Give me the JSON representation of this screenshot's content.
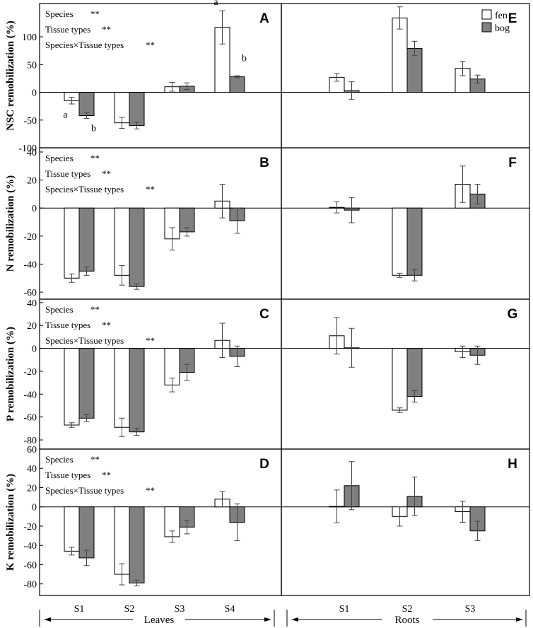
{
  "legend": {
    "fen_label": "fen",
    "bog_label": "bog",
    "fen_color": "#ffffff",
    "bog_color": "#808080"
  },
  "x_axis": {
    "leaves_label": "Leaves",
    "roots_label": "Roots"
  },
  "chart_data": [
    {
      "type": "bar",
      "panel": "A",
      "ylabel": "NSC remobilization (%)",
      "ylim": [
        -100,
        160
      ],
      "yticks": [
        -100,
        -50,
        0,
        50,
        100
      ],
      "categories": [
        "S1",
        "S2",
        "S3",
        "S4"
      ],
      "series": [
        {
          "name": "fen",
          "values": [
            -15,
            -55,
            10,
            117
          ],
          "errors": [
            6,
            10,
            8,
            30
          ]
        },
        {
          "name": "bog",
          "values": [
            -42,
            -60,
            11,
            28
          ],
          "errors": [
            5,
            6,
            6,
            2
          ]
        }
      ],
      "significance": [
        {
          "label": "Species",
          "mark": "**"
        },
        {
          "label": "Tissue types",
          "mark": "**"
        },
        {
          "label": "Species×Tissue types",
          "mark": "**"
        }
      ],
      "bar_letters": [
        {
          "category": "S1",
          "series": "fen",
          "letter": "a"
        },
        {
          "category": "S1",
          "series": "bog",
          "letter": "b"
        },
        {
          "category": "S4",
          "series": "fen",
          "letter": "a"
        },
        {
          "category": "S4",
          "series": "bog",
          "letter": "b"
        }
      ]
    },
    {
      "type": "bar",
      "panel": "E",
      "ylim": [
        -100,
        160
      ],
      "categories": [
        "S1",
        "S2",
        "S3"
      ],
      "series": [
        {
          "name": "fen",
          "values": [
            27,
            134,
            43
          ],
          "errors": [
            7,
            20,
            13
          ]
        },
        {
          "name": "bog",
          "values": [
            3,
            79,
            24
          ],
          "errors": [
            16,
            13,
            7
          ]
        }
      ]
    },
    {
      "type": "bar",
      "panel": "B",
      "ylabel": "N remobilization (%)",
      "ylim": [
        -65,
        43
      ],
      "yticks": [
        -60,
        -40,
        -20,
        0,
        20,
        40
      ],
      "categories": [
        "S1",
        "S2",
        "S3",
        "S4"
      ],
      "series": [
        {
          "name": "fen",
          "values": [
            -50,
            -48,
            -22,
            5
          ],
          "errors": [
            3,
            7,
            8,
            12
          ]
        },
        {
          "name": "bog",
          "values": [
            -45,
            -56,
            -17,
            -9
          ],
          "errors": [
            3,
            2,
            3,
            9
          ]
        }
      ],
      "significance": [
        {
          "label": "Species",
          "mark": "**"
        },
        {
          "label": "Tissue types",
          "mark": "**"
        },
        {
          "label": "Species×Tissue types",
          "mark": "**"
        }
      ]
    },
    {
      "type": "bar",
      "panel": "F",
      "ylim": [
        -65,
        43
      ],
      "categories": [
        "S1",
        "S2",
        "S3"
      ],
      "series": [
        {
          "name": "fen",
          "values": [
            0.5,
            -48,
            17
          ],
          "errors": [
            4,
            1.5,
            13
          ]
        },
        {
          "name": "bog",
          "values": [
            -1.5,
            -48,
            10
          ],
          "errors": [
            9,
            4,
            7
          ]
        }
      ]
    },
    {
      "type": "bar",
      "panel": "C",
      "ylabel": "P remobilization (%)",
      "ylim": [
        -88,
        43
      ],
      "yticks": [
        -80,
        -60,
        -40,
        -20,
        0,
        20,
        40
      ],
      "categories": [
        "S1",
        "S2",
        "S3",
        "S4"
      ],
      "series": [
        {
          "name": "fen",
          "values": [
            -67,
            -69,
            -32,
            7
          ],
          "errors": [
            2,
            8,
            6,
            15
          ]
        },
        {
          "name": "bog",
          "values": [
            -61,
            -73,
            -21,
            -7
          ],
          "errors": [
            3,
            3,
            7,
            9
          ]
        }
      ],
      "significance": [
        {
          "label": "Species",
          "mark": "**"
        },
        {
          "label": "Tissue types",
          "mark": "**"
        },
        {
          "label": "Species×Tissue types",
          "mark": "**"
        }
      ]
    },
    {
      "type": "bar",
      "panel": "G",
      "ylim": [
        -88,
        43
      ],
      "categories": [
        "S1",
        "S2",
        "S3"
      ],
      "series": [
        {
          "name": "fen",
          "values": [
            11,
            -54,
            -3
          ],
          "errors": [
            16,
            2,
            5
          ]
        },
        {
          "name": "bog",
          "values": [
            0.5,
            -42,
            -6
          ],
          "errors": [
            17,
            5,
            8
          ]
        }
      ]
    },
    {
      "type": "bar",
      "panel": "D",
      "ylabel": "K remobilization (%)",
      "ylim": [
        -92,
        60
      ],
      "yticks": [
        -80,
        -60,
        -40,
        -20,
        0,
        20,
        40,
        60
      ],
      "categories": [
        "S1",
        "S2",
        "S3",
        "S4"
      ],
      "series": [
        {
          "name": "fen",
          "values": [
            -46,
            -70,
            -31,
            8
          ],
          "errors": [
            4,
            11,
            6,
            8
          ]
        },
        {
          "name": "bog",
          "values": [
            -53,
            -79,
            -21,
            -16
          ],
          "errors": [
            8,
            3,
            7,
            19
          ]
        }
      ],
      "significance": [
        {
          "label": "Species",
          "mark": "**"
        },
        {
          "label": "Tissue types",
          "mark": "**"
        },
        {
          "label": "Species×Tissue types",
          "mark": "**"
        }
      ]
    },
    {
      "type": "bar",
      "panel": "H",
      "ylim": [
        -92,
        60
      ],
      "categories": [
        "S1",
        "S2",
        "S3"
      ],
      "series": [
        {
          "name": "fen",
          "values": [
            0.5,
            -10,
            -5
          ],
          "errors": [
            17,
            10,
            11
          ]
        },
        {
          "name": "bog",
          "values": [
            22,
            11,
            -25
          ],
          "errors": [
            25,
            20,
            10
          ]
        }
      ]
    }
  ]
}
